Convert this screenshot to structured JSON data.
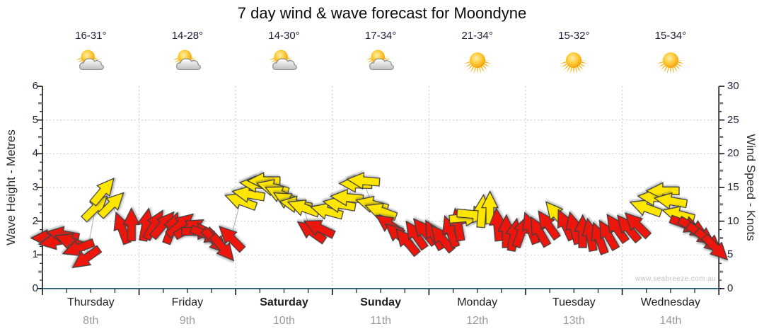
{
  "title": "7 day wind & wave forecast for Moondyne",
  "watermark": "www.seabreeze.com.au",
  "days": [
    {
      "name": "Thursday",
      "date": "8th",
      "temp": "16-31°",
      "icon": "partly-cloudy",
      "bold": false
    },
    {
      "name": "Friday",
      "date": "9th",
      "temp": "14-28°",
      "icon": "partly-cloudy",
      "bold": false
    },
    {
      "name": "Saturday",
      "date": "10th",
      "temp": "14-30°",
      "icon": "partly-cloudy",
      "bold": true
    },
    {
      "name": "Sunday",
      "date": "11th",
      "temp": "17-34°",
      "icon": "partly-cloudy",
      "bold": true
    },
    {
      "name": "Monday",
      "date": "12th",
      "temp": "21-34°",
      "icon": "sunny",
      "bold": false
    },
    {
      "name": "Tuesday",
      "date": "13th",
      "temp": "15-32°",
      "icon": "sunny",
      "bold": false
    },
    {
      "name": "Wednesday",
      "date": "14th",
      "temp": "15-34°",
      "icon": "sunny",
      "bold": false
    }
  ],
  "chart_data": {
    "type": "scatter",
    "marker": "wind-direction-arrow",
    "title": "7 day wind & wave forecast for Moondyne",
    "left_axis": {
      "label": "Wave Height - Metres",
      "min": 0,
      "max": 6,
      "ticks": [
        0,
        1,
        2,
        3,
        4,
        5,
        6
      ]
    },
    "right_axis": {
      "label": "Wind Speed - Knots",
      "min": 0,
      "max": 30,
      "ticks": [
        0,
        5,
        10,
        15,
        20,
        25,
        30
      ]
    },
    "x_categories": [
      "Thursday",
      "Friday",
      "Saturday",
      "Sunday",
      "Monday",
      "Tuesday",
      "Wednesday"
    ],
    "grid": "dotted horizontal every 1 m (5 kn), dotted vertical day separators",
    "legend": "arrow colour = wind strength: red < 10 kn, yellow 10-19 kn; arrow points downwind; d = day index, t = fraction of day, kn = wind speed knots, rot = screen direction degrees clockwise (0 = right)",
    "colors": {
      "light_wind": "#ec1509",
      "moderate_wind": "#ffe606",
      "arrow_outline": "#3c3c3c",
      "trend_line": "#b0b0b0",
      "x_axis_line": "#33677f"
    },
    "arrows": [
      {
        "d": 0,
        "t": 0.05,
        "kn": 7.5,
        "rot": 180,
        "c": "red"
      },
      {
        "d": 0,
        "t": 0.13,
        "kn": 7,
        "rot": 170,
        "c": "red"
      },
      {
        "d": 0,
        "t": 0.21,
        "kn": 8,
        "rot": 190,
        "c": "red"
      },
      {
        "d": 0,
        "t": 0.29,
        "kn": 7,
        "rot": 200,
        "c": "red"
      },
      {
        "d": 0,
        "t": 0.37,
        "kn": 6,
        "rot": 160,
        "c": "red"
      },
      {
        "d": 0,
        "t": 0.45,
        "kn": 4.5,
        "rot": 145,
        "c": "red"
      },
      {
        "d": 0,
        "t": 0.55,
        "kn": 12,
        "rot": 315,
        "c": "yellow"
      },
      {
        "d": 0,
        "t": 0.63,
        "kn": 14.5,
        "rot": 310,
        "c": "yellow"
      },
      {
        "d": 0,
        "t": 0.72,
        "kn": 12.5,
        "rot": 315,
        "c": "yellow"
      },
      {
        "d": 0,
        "t": 0.82,
        "kn": 9,
        "rot": 250,
        "c": "red"
      },
      {
        "d": 0,
        "t": 0.92,
        "kn": 9.5,
        "rot": 270,
        "c": "red"
      },
      {
        "d": 1,
        "t": 0.07,
        "kn": 9.5,
        "rot": 280,
        "c": "red"
      },
      {
        "d": 1,
        "t": 0.16,
        "kn": 9.5,
        "rot": 300,
        "c": "red"
      },
      {
        "d": 1,
        "t": 0.25,
        "kn": 9.5,
        "rot": 310,
        "c": "red"
      },
      {
        "d": 1,
        "t": 0.34,
        "kn": 9,
        "rot": 290,
        "c": "red"
      },
      {
        "d": 1,
        "t": 0.43,
        "kn": 9.5,
        "rot": 320,
        "c": "red"
      },
      {
        "d": 1,
        "t": 0.52,
        "kn": 9,
        "rot": 330,
        "c": "red"
      },
      {
        "d": 1,
        "t": 0.61,
        "kn": 8.5,
        "rot": 0,
        "c": "red"
      },
      {
        "d": 1,
        "t": 0.7,
        "kn": 8,
        "rot": 20,
        "c": "red"
      },
      {
        "d": 1,
        "t": 0.79,
        "kn": 7,
        "rot": 45,
        "c": "red"
      },
      {
        "d": 1,
        "t": 0.87,
        "kn": 6,
        "rot": 50,
        "c": "red"
      },
      {
        "d": 1,
        "t": 0.95,
        "kn": 7.5,
        "rot": 225,
        "c": "red"
      },
      {
        "d": 2,
        "t": 0.05,
        "kn": 13,
        "rot": 200,
        "c": "yellow"
      },
      {
        "d": 2,
        "t": 0.13,
        "kn": 14,
        "rot": 190,
        "c": "yellow"
      },
      {
        "d": 2,
        "t": 0.21,
        "kn": 15.5,
        "rot": 185,
        "c": "yellow"
      },
      {
        "d": 2,
        "t": 0.29,
        "kn": 16,
        "rot": 180,
        "c": "yellow"
      },
      {
        "d": 2,
        "t": 0.38,
        "kn": 15,
        "rot": 195,
        "c": "yellow"
      },
      {
        "d": 2,
        "t": 0.46,
        "kn": 14,
        "rot": 205,
        "c": "yellow"
      },
      {
        "d": 2,
        "t": 0.54,
        "kn": 13,
        "rot": 210,
        "c": "yellow"
      },
      {
        "d": 2,
        "t": 0.62,
        "kn": 12.5,
        "rot": 190,
        "c": "yellow"
      },
      {
        "d": 2,
        "t": 0.7,
        "kn": 12,
        "rot": 200,
        "c": "yellow"
      },
      {
        "d": 2,
        "t": 0.78,
        "kn": 8.5,
        "rot": 215,
        "c": "red"
      },
      {
        "d": 2,
        "t": 0.86,
        "kn": 9,
        "rot": 205,
        "c": "red"
      },
      {
        "d": 2,
        "t": 0.94,
        "kn": 11.5,
        "rot": 195,
        "c": "yellow"
      },
      {
        "d": 3,
        "t": 0.07,
        "kn": 12.5,
        "rot": 190,
        "c": "yellow"
      },
      {
        "d": 3,
        "t": 0.15,
        "kn": 13.5,
        "rot": 185,
        "c": "yellow"
      },
      {
        "d": 3,
        "t": 0.24,
        "kn": 15.5,
        "rot": 182,
        "c": "yellow"
      },
      {
        "d": 3,
        "t": 0.32,
        "kn": 16,
        "rot": 185,
        "c": "yellow"
      },
      {
        "d": 3,
        "t": 0.41,
        "kn": 12.5,
        "rot": 195,
        "c": "yellow"
      },
      {
        "d": 3,
        "t": 0.5,
        "kn": 11.5,
        "rot": 200,
        "c": "yellow"
      },
      {
        "d": 3,
        "t": 0.59,
        "kn": 9.5,
        "rot": 215,
        "c": "red"
      },
      {
        "d": 3,
        "t": 0.68,
        "kn": 8,
        "rot": 220,
        "c": "red"
      },
      {
        "d": 3,
        "t": 0.77,
        "kn": 7,
        "rot": 230,
        "c": "red"
      },
      {
        "d": 3,
        "t": 0.86,
        "kn": 8,
        "rot": 235,
        "c": "red"
      },
      {
        "d": 3,
        "t": 0.95,
        "kn": 8.5,
        "rot": 230,
        "c": "red"
      },
      {
        "d": 4,
        "t": 0.05,
        "kn": 8,
        "rot": 240,
        "c": "red"
      },
      {
        "d": 4,
        "t": 0.13,
        "kn": 7.5,
        "rot": 230,
        "c": "red"
      },
      {
        "d": 4,
        "t": 0.22,
        "kn": 8.5,
        "rot": 250,
        "c": "red"
      },
      {
        "d": 4,
        "t": 0.3,
        "kn": 9.5,
        "rot": 260,
        "c": "red"
      },
      {
        "d": 4,
        "t": 0.38,
        "kn": 10.5,
        "rot": 355,
        "c": "yellow"
      },
      {
        "d": 4,
        "t": 0.46,
        "kn": 11,
        "rot": 5,
        "c": "yellow"
      },
      {
        "d": 4,
        "t": 0.55,
        "kn": 11.5,
        "rot": 275,
        "c": "yellow"
      },
      {
        "d": 4,
        "t": 0.63,
        "kn": 12,
        "rot": 270,
        "c": "yellow"
      },
      {
        "d": 4,
        "t": 0.71,
        "kn": 9.5,
        "rot": 265,
        "c": "red"
      },
      {
        "d": 4,
        "t": 0.8,
        "kn": 8.5,
        "rot": 270,
        "c": "red"
      },
      {
        "d": 4,
        "t": 0.88,
        "kn": 8,
        "rot": 280,
        "c": "red"
      },
      {
        "d": 4,
        "t": 0.96,
        "kn": 8.5,
        "rot": 290,
        "c": "red"
      },
      {
        "d": 5,
        "t": 0.05,
        "kn": 9,
        "rot": 250,
        "c": "red"
      },
      {
        "d": 5,
        "t": 0.14,
        "kn": 8.5,
        "rot": 240,
        "c": "red"
      },
      {
        "d": 5,
        "t": 0.23,
        "kn": 9.5,
        "rot": 235,
        "c": "red"
      },
      {
        "d": 5,
        "t": 0.32,
        "kn": 11,
        "rot": 230,
        "c": "yellow"
      },
      {
        "d": 5,
        "t": 0.41,
        "kn": 9.5,
        "rot": 245,
        "c": "red"
      },
      {
        "d": 5,
        "t": 0.5,
        "kn": 9,
        "rot": 255,
        "c": "red"
      },
      {
        "d": 5,
        "t": 0.59,
        "kn": 8.5,
        "rot": 270,
        "c": "red"
      },
      {
        "d": 5,
        "t": 0.67,
        "kn": 8,
        "rot": 260,
        "c": "red"
      },
      {
        "d": 5,
        "t": 0.76,
        "kn": 7.5,
        "rot": 250,
        "c": "red"
      },
      {
        "d": 5,
        "t": 0.85,
        "kn": 8,
        "rot": 240,
        "c": "red"
      },
      {
        "d": 5,
        "t": 0.94,
        "kn": 9,
        "rot": 235,
        "c": "red"
      },
      {
        "d": 6,
        "t": 0.06,
        "kn": 9,
        "rot": 230,
        "c": "red"
      },
      {
        "d": 6,
        "t": 0.15,
        "kn": 9.5,
        "rot": 225,
        "c": "red"
      },
      {
        "d": 6,
        "t": 0.24,
        "kn": 12,
        "rot": 200,
        "c": "yellow"
      },
      {
        "d": 6,
        "t": 0.33,
        "kn": 13.5,
        "rot": 185,
        "c": "yellow"
      },
      {
        "d": 6,
        "t": 0.42,
        "kn": 14.5,
        "rot": 180,
        "c": "yellow"
      },
      {
        "d": 6,
        "t": 0.5,
        "kn": 13,
        "rot": 190,
        "c": "yellow"
      },
      {
        "d": 6,
        "t": 0.58,
        "kn": 11,
        "rot": 195,
        "c": "yellow"
      },
      {
        "d": 6,
        "t": 0.66,
        "kn": 9.5,
        "rot": 20,
        "c": "red"
      },
      {
        "d": 6,
        "t": 0.74,
        "kn": 9,
        "rot": 30,
        "c": "red"
      },
      {
        "d": 6,
        "t": 0.82,
        "kn": 8,
        "rot": 35,
        "c": "red"
      },
      {
        "d": 6,
        "t": 0.9,
        "kn": 7,
        "rot": 40,
        "c": "red"
      },
      {
        "d": 6,
        "t": 0.97,
        "kn": 6,
        "rot": 45,
        "c": "red"
      }
    ]
  }
}
